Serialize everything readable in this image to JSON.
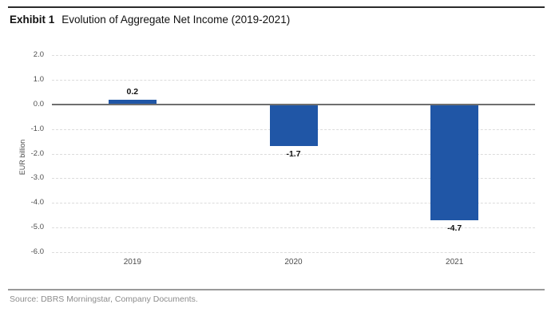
{
  "header": {
    "exhibit_label": "Exhibit 1",
    "title": "Evolution of Aggregate Net Income (2019-2021)"
  },
  "chart_data": {
    "type": "bar",
    "categories": [
      "2019",
      "2020",
      "2021"
    ],
    "values": [
      0.2,
      -1.7,
      -4.7
    ],
    "value_labels": [
      "0.2",
      "-1.7",
      "-4.7"
    ],
    "title": "Evolution of Aggregate Net Income (2019-2021)",
    "xlabel": "",
    "ylabel": "EUR billion",
    "ylim": [
      -6.0,
      2.0
    ],
    "yticks": [
      2.0,
      1.0,
      0.0,
      -1.0,
      -2.0,
      -3.0,
      -4.0,
      -5.0,
      -6.0
    ],
    "ytick_labels": [
      "2.0",
      "1.0",
      "0.0",
      "-1.0",
      "-2.0",
      "-3.0",
      "-4.0",
      "-5.0",
      "-6.0"
    ],
    "grid": true,
    "legend": false,
    "bar_color": "#2056A6"
  },
  "colors": {
    "bar": "#2056A6",
    "gridline": "#dcdcdc",
    "zero_line": "#6e6e6e",
    "top_rule": "#2b2b2b",
    "bottom_rule": "#9a9a9a",
    "axis_text": "#4d4d4d",
    "source_text": "#8c8c8c"
  },
  "footer": {
    "source": "Source: DBRS Morningstar, Company Documents."
  }
}
